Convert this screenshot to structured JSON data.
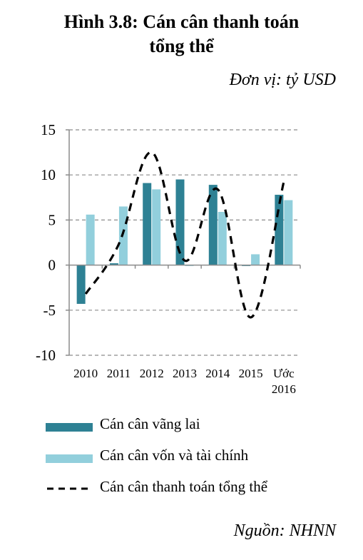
{
  "title_line1": "Hình 3.8: Cán cân thanh toán",
  "title_line2": "tổng thể",
  "unit": "Đơn vị: tỷ USD",
  "source": "Nguồn: NHNN",
  "chart_data": {
    "type": "bar",
    "categories": [
      [
        "2010"
      ],
      [
        "2011"
      ],
      [
        "2012"
      ],
      [
        "2013"
      ],
      [
        "2014"
      ],
      [
        "2015"
      ],
      [
        "Ước",
        "2016"
      ]
    ],
    "series": [
      {
        "name": "Cán cân vãng lai",
        "type": "bar",
        "color": "#2e8194",
        "values": [
          -4.3,
          0.2,
          9.1,
          9.5,
          8.9,
          -0.1,
          7.8
        ]
      },
      {
        "name": "Cán cân vốn và tài chính",
        "type": "bar",
        "color": "#92cfdc",
        "values": [
          5.6,
          6.5,
          8.4,
          -0.1,
          5.9,
          1.2,
          7.2
        ]
      },
      {
        "name": "Cán cân thanh toán tổng thể",
        "type": "line",
        "style": "dashed",
        "color": "#000000",
        "values": [
          -3.2,
          2.3,
          12.5,
          0.5,
          8.4,
          -5.8,
          9.2
        ]
      }
    ],
    "ylim": [
      -10,
      15
    ],
    "yticks": [
      -10,
      -5,
      0,
      5,
      10,
      15
    ],
    "grid": true,
    "legend": "bottom"
  }
}
